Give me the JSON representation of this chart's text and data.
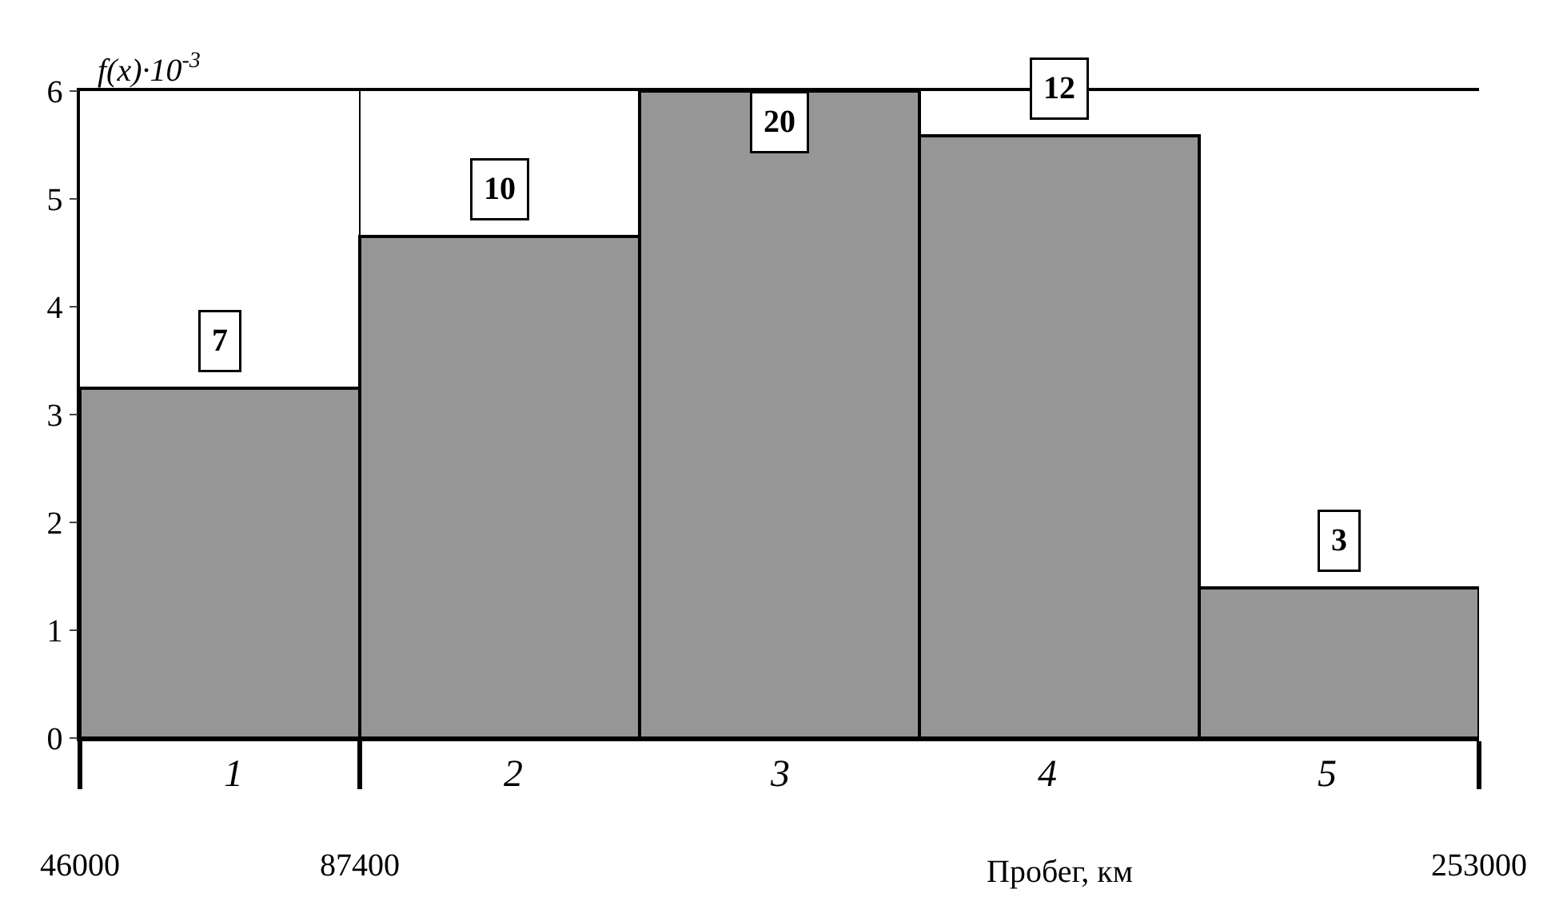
{
  "chart_data": {
    "type": "histogram",
    "ylabel": "f(x)·10$^{-3}$",
    "xlabel": "Пробег, км",
    "bins": [
      46000,
      87400,
      128800,
      170200,
      211600,
      253000
    ],
    "values": [
      3.25,
      4.65,
      6,
      5.58,
      1.4
    ],
    "color": "#969696",
    "annotations": [
      {
        "text": "7",
        "x": 66700,
        "y": 3.25
      },
      {
        "text": "10",
        "x": 108100,
        "y": 4.65
      },
      {
        "text": "20",
        "x": 149500,
        "y": 6
      },
      {
        "text": "12",
        "x": 190900,
        "y": 5.58
      },
      {
        "text": "3",
        "x": 232300,
        "y": 1.4
      },
      "1",
      "2",
      "3",
      "4",
      "5"
    ],
    "xlim": [
      46000,
      253000
    ],
    "xticks": [
      46000,
      87400,
      253000
    ],
    "ylim": [
      0,
      6
    ],
    "yticks": [
      0,
      1,
      2,
      3,
      4,
      5,
      6
    ],
    "grid": "x"
  }
}
